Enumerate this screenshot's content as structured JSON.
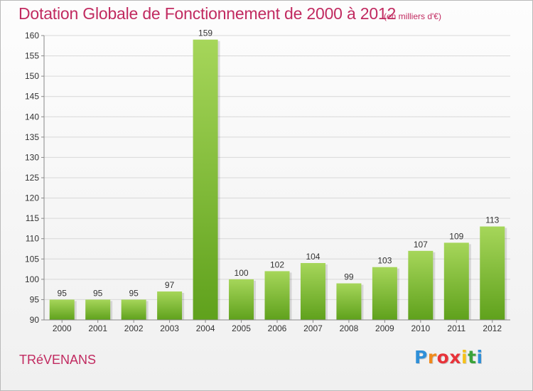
{
  "header": {
    "title": "Dotation Globale de Fonctionnement de 2000 à 2012",
    "subtitle": "(en milliers d'€)"
  },
  "footer": {
    "commune": "TRéVENANS",
    "logo_letters": [
      "P",
      "r",
      "o",
      "x",
      "i",
      "t",
      "i"
    ],
    "logo_colors": [
      "#2f8fd8",
      "#f08a1c",
      "#e8333a",
      "#e8333a",
      "#f6c11a",
      "#3aa33a",
      "#2f8fd8"
    ]
  },
  "colors": {
    "title": "#c12a60",
    "bar_light": "#a6d65a",
    "bar_dark": "#5fa11c",
    "grid": "#d8d8d8",
    "axis": "#888888"
  },
  "chart_data": {
    "type": "bar",
    "categories": [
      "2000",
      "2001",
      "2002",
      "2003",
      "2004",
      "2005",
      "2006",
      "2007",
      "2008",
      "2009",
      "2010",
      "2011",
      "2012"
    ],
    "values": [
      95,
      95,
      95,
      97,
      159,
      100,
      102,
      104,
      99,
      103,
      107,
      109,
      113
    ],
    "ylim": [
      90,
      160
    ],
    "yticks": [
      90,
      95,
      100,
      105,
      110,
      115,
      120,
      125,
      130,
      135,
      140,
      145,
      150,
      155,
      160
    ],
    "grid": "horizontal",
    "data_labels": true
  }
}
